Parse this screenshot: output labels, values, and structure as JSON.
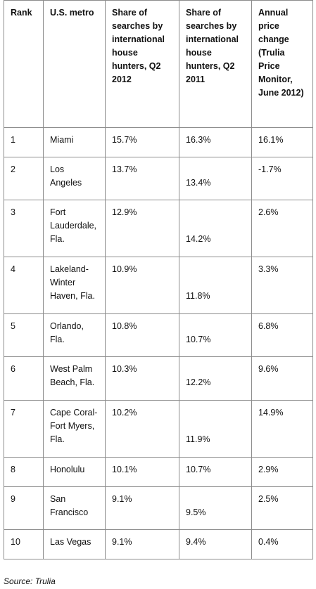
{
  "table": {
    "headers": [
      "Rank",
      "U.S. metro",
      "Share of searches by international house hunters, Q2 2012",
      "Share of searches by international house hunters, Q2 2011",
      "Annual price change (Trulia Price Monitor, June 2012)"
    ],
    "rows": [
      {
        "rank": "1",
        "metro": "Miami",
        "q2_2012": "15.7%",
        "q2_2011": "16.3%",
        "price_change": "16.1%"
      },
      {
        "rank": "2",
        "metro": "Los Angeles",
        "q2_2012": "13.7%",
        "q2_2011": "13.4%",
        "price_change": "-1.7%"
      },
      {
        "rank": "3",
        "metro": "Fort Lauderdale, Fla.",
        "q2_2012": "12.9%",
        "q2_2011": "14.2%",
        "price_change": "2.6%"
      },
      {
        "rank": "4",
        "metro": "Lakeland-Winter Haven, Fla.",
        "q2_2012": "10.9%",
        "q2_2011": "11.8%",
        "price_change": "3.3%"
      },
      {
        "rank": "5",
        "metro": "Orlando, Fla.",
        "q2_2012": "10.8%",
        "q2_2011": "10.7%",
        "price_change": "6.8%"
      },
      {
        "rank": "6",
        "metro": "West Palm Beach, Fla.",
        "q2_2012": "10.3%",
        "q2_2011": "12.2%",
        "price_change": "9.6%"
      },
      {
        "rank": "7",
        "metro": "Cape Coral-Fort Myers, Fla.",
        "q2_2012": "10.2%",
        "q2_2011": "11.9%",
        "price_change": "14.9%"
      },
      {
        "rank": "8",
        "metro": "Honolulu",
        "q2_2012": "10.1%",
        "q2_2011": "10.7%",
        "price_change": "2.9%"
      },
      {
        "rank": "9",
        "metro": "San Francisco",
        "q2_2012": "9.1%",
        "q2_2011": "9.5%",
        "price_change": "2.5%"
      },
      {
        "rank": "10",
        "metro": "Las Vegas",
        "q2_2012": "9.1%",
        "q2_2011": "9.4%",
        "price_change": "0.4%"
      }
    ]
  },
  "source": "Source: Trulia"
}
